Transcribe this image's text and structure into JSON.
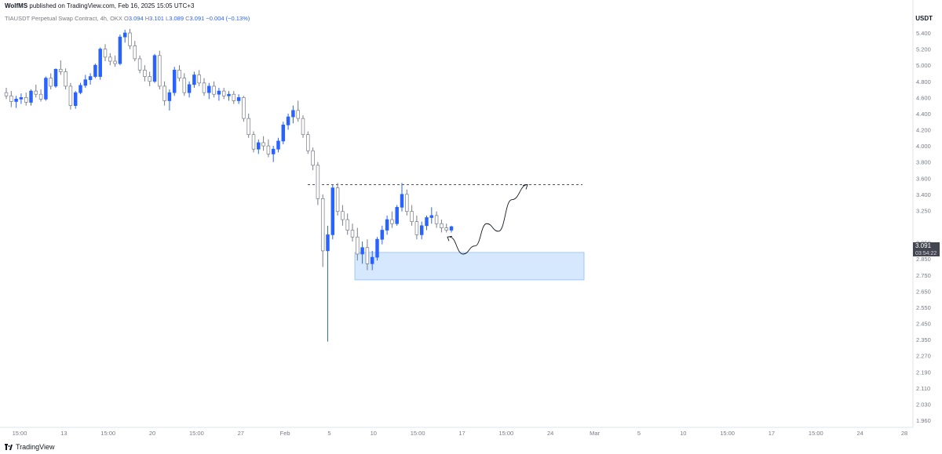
{
  "header": {
    "author": "WolfMS",
    "text": " published on TradingView.com, Feb 16, 2025 15:05 UTC+3"
  },
  "symbol": {
    "name": "TIAUSDT Perpetual Swap Contract, 4h, OKX",
    "open_label": "O",
    "open": "3.094",
    "high_label": "H",
    "high": "3.101",
    "low_label": "L",
    "low": "3.089",
    "close_label": "C",
    "close": "3.091",
    "change": "−0.004 (−0.13%)"
  },
  "currency": "USDT",
  "price_tag": {
    "price": "3.091",
    "countdown": "03:54:22",
    "color": "#434651"
  },
  "footer": {
    "brand": "TradingView"
  },
  "colors": {
    "up": "#2962ff",
    "down": "#787b86",
    "zone": "#bbd9fb"
  },
  "chart_data": {
    "type": "candlestick",
    "price_axis": [
      5.4,
      5.2,
      5.0,
      4.8,
      4.6,
      4.4,
      4.2,
      4.0,
      3.8,
      3.6,
      3.4,
      3.25,
      3.091,
      2.95,
      2.85,
      2.75,
      2.65,
      2.55,
      2.45,
      2.35,
      2.27,
      2.19,
      2.11,
      2.03,
      1.96
    ],
    "price_axis_labels": [
      "5.400",
      "5.200",
      "5.000",
      "4.800",
      "4.600",
      "4.400",
      "4.200",
      "4.000",
      "3.800",
      "3.600",
      "3.400",
      "3.250",
      "",
      "2.950",
      "2.850",
      "2.750",
      "2.650",
      "2.550",
      "2.450",
      "2.350",
      "2.270",
      "2.190",
      "2.110",
      "2.030",
      "1.960"
    ],
    "time_axis": [
      "15:00",
      "13",
      "15:00",
      "20",
      "15:00",
      "27",
      "Feb",
      "5",
      "10",
      "15:00",
      "17",
      "15:00",
      "24",
      "Mar",
      "5",
      "10",
      "15:00",
      "17",
      "15:00",
      "24",
      "28"
    ],
    "last_price": 3.091,
    "resistance_level": 3.52,
    "demand_zone": {
      "top": 2.89,
      "bottom": 2.72
    },
    "projection": [
      3.0,
      2.88,
      2.93,
      3.12,
      3.05,
      3.35,
      3.52
    ],
    "candles": [
      [
        4.66,
        4.72,
        4.58,
        4.62
      ],
      [
        4.62,
        4.68,
        4.48,
        4.55
      ],
      [
        4.55,
        4.62,
        4.47,
        4.58
      ],
      [
        4.58,
        4.65,
        4.52,
        4.6
      ],
      [
        4.6,
        4.66,
        4.5,
        4.54
      ],
      [
        4.54,
        4.7,
        4.5,
        4.68
      ],
      [
        4.68,
        4.76,
        4.6,
        4.64
      ],
      [
        4.64,
        4.7,
        4.55,
        4.58
      ],
      [
        4.58,
        4.86,
        4.56,
        4.84
      ],
      [
        4.84,
        4.9,
        4.7,
        4.74
      ],
      [
        4.74,
        4.96,
        4.72,
        4.95
      ],
      [
        4.95,
        5.06,
        4.88,
        4.92
      ],
      [
        4.92,
        4.96,
        4.7,
        4.74
      ],
      [
        4.74,
        4.78,
        4.45,
        4.5
      ],
      [
        4.5,
        4.68,
        4.46,
        4.66
      ],
      [
        4.66,
        4.78,
        4.64,
        4.75
      ],
      [
        4.75,
        4.88,
        4.72,
        4.82
      ],
      [
        4.82,
        4.9,
        4.76,
        4.86
      ],
      [
        4.86,
        5.02,
        4.84,
        5.0
      ],
      [
        4.86,
        5.22,
        4.82,
        5.2
      ],
      [
        5.2,
        5.26,
        5.05,
        5.1
      ],
      [
        5.1,
        5.15,
        5.0,
        5.05
      ],
      [
        5.05,
        5.12,
        4.98,
        5.02
      ],
      [
        5.02,
        5.38,
        5.0,
        5.35
      ],
      [
        5.35,
        5.44,
        5.28,
        5.4
      ],
      [
        5.4,
        5.45,
        5.2,
        5.24
      ],
      [
        5.24,
        5.3,
        5.05,
        5.08
      ],
      [
        5.08,
        5.12,
        4.9,
        4.94
      ],
      [
        4.94,
        5.0,
        4.8,
        4.86
      ],
      [
        4.86,
        4.92,
        4.74,
        4.8
      ],
      [
        4.8,
        5.14,
        4.78,
        5.12
      ],
      [
        5.12,
        5.18,
        4.7,
        4.74
      ],
      [
        4.74,
        4.8,
        4.5,
        4.56
      ],
      [
        4.56,
        4.7,
        4.44,
        4.66
      ],
      [
        4.66,
        4.98,
        4.62,
        4.94
      ],
      [
        4.94,
        5.0,
        4.8,
        4.84
      ],
      [
        4.84,
        4.9,
        4.62,
        4.66
      ],
      [
        4.66,
        4.8,
        4.6,
        4.76
      ],
      [
        4.76,
        4.92,
        4.72,
        4.88
      ],
      [
        4.88,
        4.94,
        4.74,
        4.78
      ],
      [
        4.78,
        4.84,
        4.62,
        4.66
      ],
      [
        4.66,
        4.78,
        4.58,
        4.74
      ],
      [
        4.74,
        4.8,
        4.6,
        4.64
      ],
      [
        4.64,
        4.72,
        4.56,
        4.68
      ],
      [
        4.68,
        4.72,
        4.58,
        4.62
      ],
      [
        4.62,
        4.68,
        4.56,
        4.64
      ],
      [
        4.64,
        4.68,
        4.52,
        4.56
      ],
      [
        4.56,
        4.64,
        4.52,
        4.6
      ],
      [
        4.6,
        4.62,
        4.3,
        4.34
      ],
      [
        4.34,
        4.4,
        4.1,
        4.14
      ],
      [
        4.14,
        4.18,
        3.92,
        3.96
      ],
      [
        3.96,
        4.08,
        3.9,
        4.04
      ],
      [
        4.04,
        4.12,
        3.94,
        4.0
      ],
      [
        4.0,
        4.08,
        3.86,
        3.9
      ],
      [
        3.9,
        4.0,
        3.8,
        3.96
      ],
      [
        3.96,
        4.1,
        3.92,
        4.06
      ],
      [
        4.06,
        4.3,
        4.02,
        4.26
      ],
      [
        4.26,
        4.4,
        4.2,
        4.36
      ],
      [
        4.36,
        4.5,
        4.28,
        4.44
      ],
      [
        4.44,
        4.56,
        4.3,
        4.34
      ],
      [
        4.34,
        4.38,
        4.1,
        4.14
      ],
      [
        4.14,
        4.18,
        3.9,
        3.94
      ],
      [
        3.94,
        3.98,
        3.7,
        3.76
      ],
      [
        3.76,
        3.8,
        3.3,
        3.36
      ],
      [
        3.36,
        3.4,
        2.8,
        2.9
      ],
      [
        2.9,
        3.1,
        2.34,
        3.02
      ],
      [
        3.02,
        3.52,
        2.98,
        3.48
      ],
      [
        3.48,
        3.54,
        3.2,
        3.24
      ],
      [
        3.24,
        3.3,
        3.1,
        3.16
      ],
      [
        3.16,
        3.22,
        3.02,
        3.06
      ],
      [
        3.06,
        3.12,
        2.96,
        3.0
      ],
      [
        3.0,
        3.08,
        2.84,
        2.88
      ],
      [
        2.88,
        2.96,
        2.82,
        2.92
      ],
      [
        2.92,
        2.98,
        2.78,
        2.82
      ],
      [
        2.82,
        2.9,
        2.78,
        2.86
      ],
      [
        2.86,
        3.0,
        2.84,
        2.98
      ],
      [
        2.98,
        3.1,
        2.94,
        3.06
      ],
      [
        3.06,
        3.2,
        3.02,
        3.16
      ],
      [
        3.16,
        3.24,
        3.08,
        3.12
      ],
      [
        3.12,
        3.3,
        3.1,
        3.28
      ],
      [
        3.28,
        3.54,
        3.24,
        3.4
      ],
      [
        3.4,
        3.46,
        3.2,
        3.24
      ],
      [
        3.24,
        3.3,
        3.1,
        3.14
      ],
      [
        3.14,
        3.2,
        2.98,
        3.02
      ],
      [
        3.02,
        3.14,
        2.98,
        3.1
      ],
      [
        3.1,
        3.2,
        3.06,
        3.18
      ],
      [
        3.18,
        3.28,
        3.12,
        3.2
      ],
      [
        3.2,
        3.24,
        3.08,
        3.12
      ],
      [
        3.12,
        3.16,
        3.04,
        3.08
      ],
      [
        3.08,
        3.12,
        3.04,
        3.06
      ],
      [
        3.06,
        3.1,
        3.04,
        3.09
      ]
    ]
  }
}
